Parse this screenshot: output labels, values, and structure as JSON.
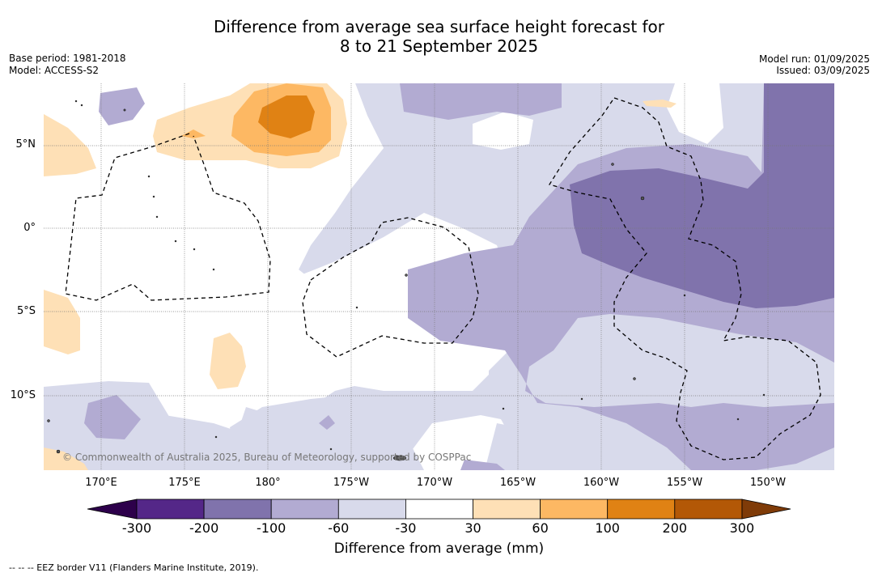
{
  "title_line1": "Difference from average sea surface height forecast for",
  "title_line2": "8 to 21 September 2025",
  "base_period": "Base period: 1981-2018",
  "model": "Model: ACCESS-S2",
  "model_run": "Model run: 01/09/2025",
  "issued": "Issued: 03/09/2025",
  "lat_labels": [
    "5°N",
    "0°",
    "5°S",
    "10°S"
  ],
  "lon_labels": [
    "170°E",
    "175°E",
    "180°",
    "175°W",
    "170°W",
    "165°W",
    "160°W",
    "155°W",
    "150°W"
  ],
  "copyright": "© Commonwealth of Australia 2025, Bureau of Meteorology, supported by COSPPac",
  "colorbar": {
    "ticks": [
      "-300",
      "-200",
      "-100",
      "-60",
      "-30",
      "30",
      "60",
      "100",
      "200",
      "300"
    ],
    "colors": [
      "#542788",
      "#8073ac",
      "#b2abd2",
      "#d8daeb",
      "#ffffff",
      "#fee0b6",
      "#fdb863",
      "#e08214",
      "#b35806"
    ],
    "under_color": "#2d004b",
    "over_color": "#7f3b08",
    "label": "Difference from average (mm)"
  },
  "footnote": "--  --  -- EEZ border V11 (Flanders Marine Institute, 2019)."
}
